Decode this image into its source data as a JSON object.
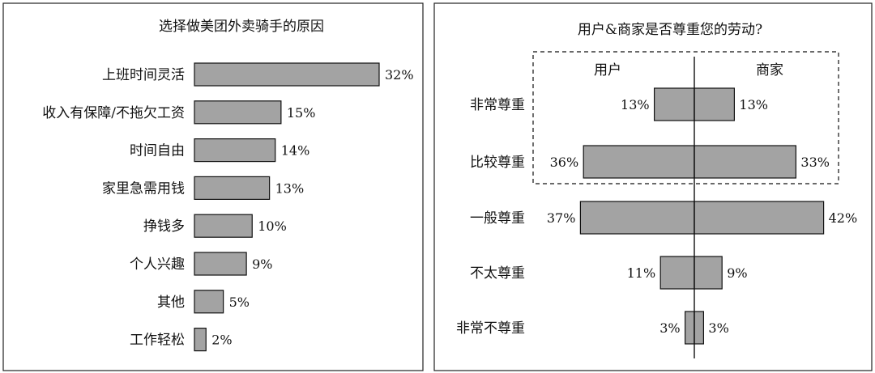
{
  "colors": {
    "bar": "#a3a3a3",
    "stroke": "#111111"
  },
  "chart_data": [
    {
      "type": "bar",
      "orientation": "horizontal",
      "title": "选择做美团外卖骑手的原因",
      "categories": [
        "上班时间灵活",
        "收入有保障/不拖欠工资",
        "时间自由",
        "家里急需用钱",
        "挣钱多",
        "个人兴趣",
        "其他",
        "工作轻松"
      ],
      "values": [
        32,
        15,
        14,
        13,
        10,
        9,
        5,
        2
      ],
      "value_labels": [
        "32%",
        "15%",
        "14%",
        "13%",
        "10%",
        "9%",
        "5%",
        "2%"
      ],
      "unit": "%",
      "xlim": [
        0,
        32
      ]
    },
    {
      "type": "bar",
      "orientation": "horizontal-diverging",
      "title": "用户&商家是否尊重您的劳动?",
      "categories": [
        "非常尊重",
        "比较尊重",
        "一般尊重",
        "不太尊重",
        "非常不尊重"
      ],
      "series": [
        {
          "name": "用户",
          "values": [
            13,
            36,
            37,
            11,
            3
          ],
          "labels": [
            "13%",
            "36%",
            "37%",
            "11%",
            "3%"
          ]
        },
        {
          "name": "商家",
          "values": [
            13,
            33,
            42,
            9,
            3
          ],
          "labels": [
            "13%",
            "33%",
            "42%",
            "9%",
            "3%"
          ]
        }
      ],
      "unit": "%",
      "highlight": {
        "style": "dashed-box",
        "categories": [
          "非常尊重",
          "比较尊重"
        ]
      }
    }
  ]
}
